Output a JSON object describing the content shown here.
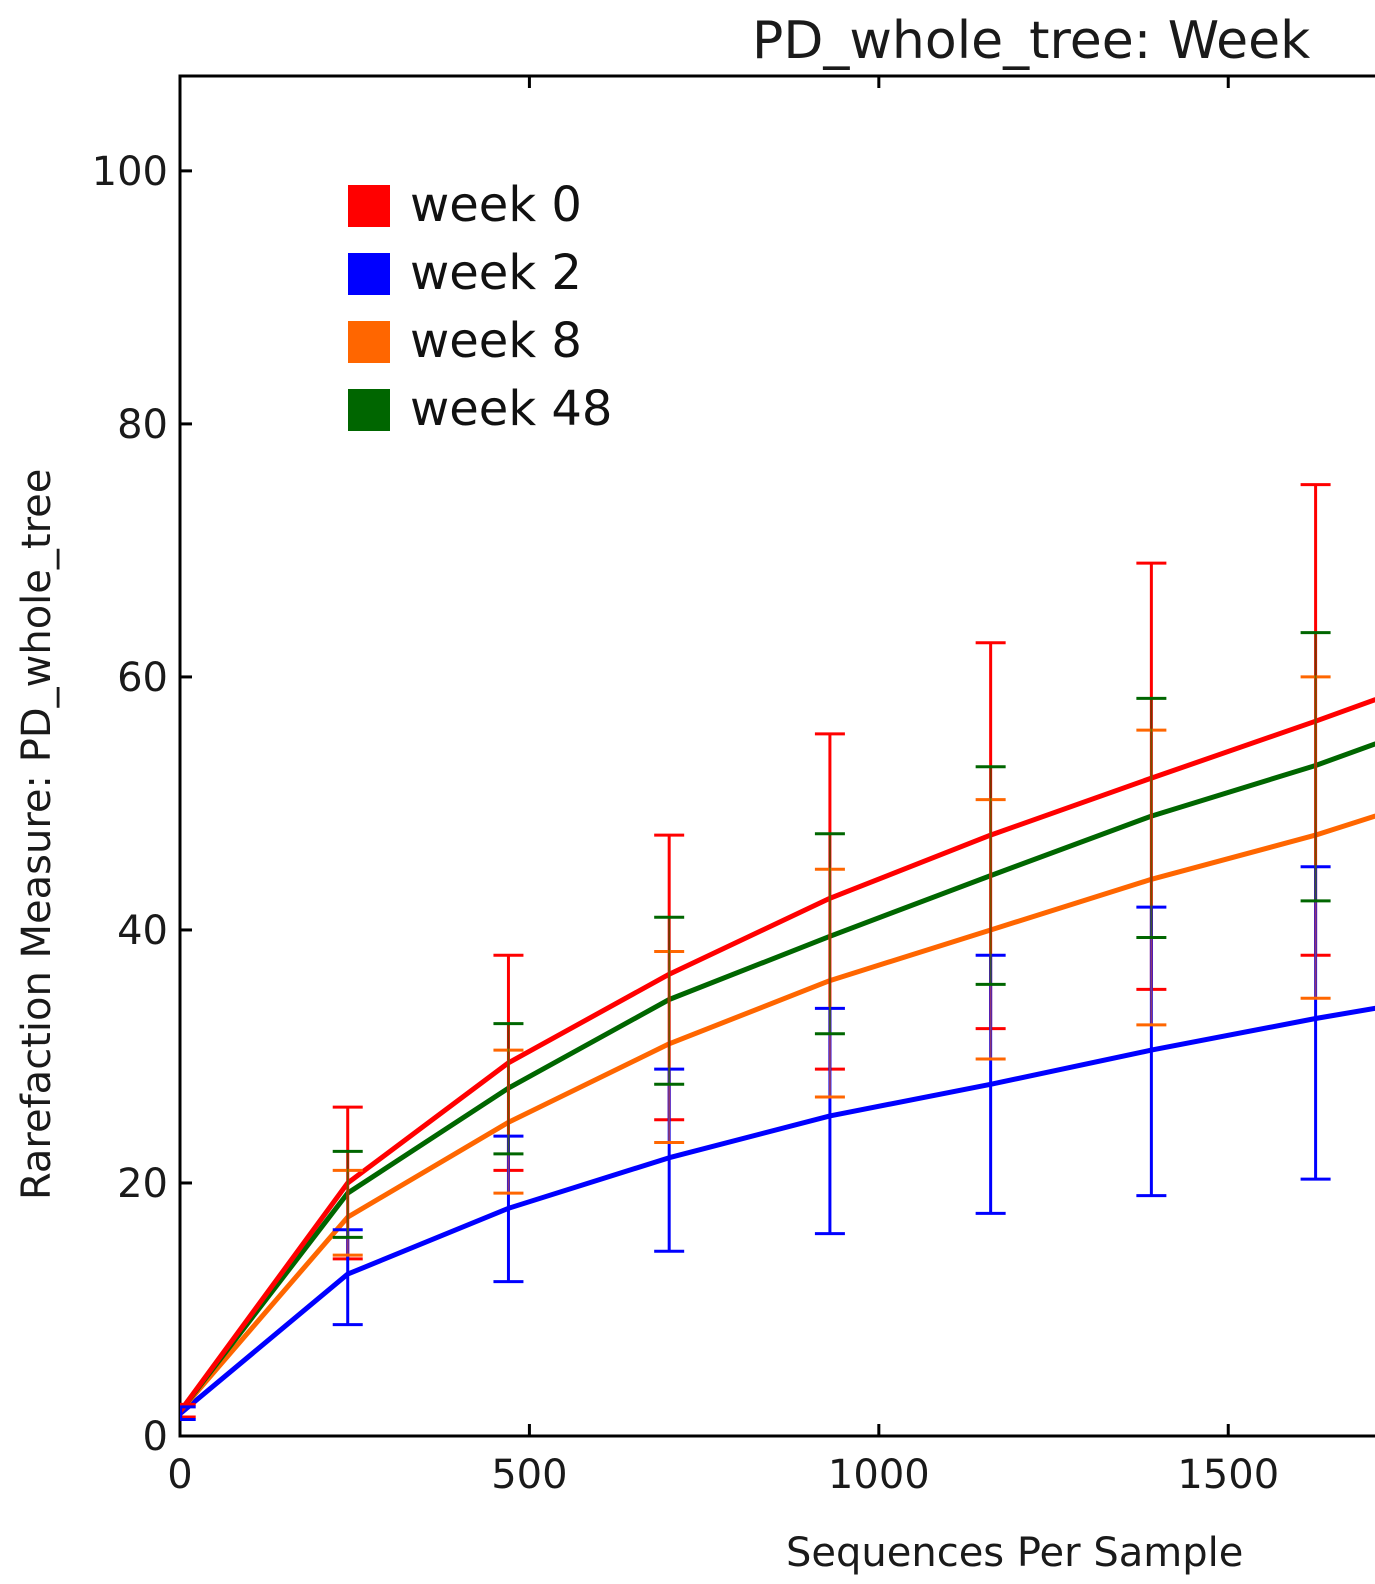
{
  "chart_data": {
    "type": "line",
    "title": "PD_whole_tree: Week",
    "xlabel": "Sequences Per Sample",
    "ylabel": "Rarefaction Measure: PD_whole_tree",
    "xlim": [
      0,
      1710
    ],
    "ylim": [
      0,
      107.5
    ],
    "x_ticks": [
      0,
      500,
      1000,
      1500
    ],
    "y_ticks": [
      0,
      20,
      40,
      60,
      80,
      100
    ],
    "grid": false,
    "legend_placement": "top-left",
    "x": [
      1,
      240,
      470,
      700,
      930,
      1160,
      1390,
      1625,
      1710
    ],
    "series": [
      {
        "name": "week 0",
        "color": "#ff0000",
        "values": [
          2,
          20,
          29.5,
          36.5,
          42.5,
          47.5,
          52,
          56.5,
          58.2
        ],
        "err_low": [
          1.5,
          14,
          21,
          25,
          29,
          32.2,
          35.3,
          38,
          null
        ],
        "err_high": [
          2.5,
          26,
          38,
          47.5,
          55.5,
          62.7,
          69,
          75.2,
          null
        ]
      },
      {
        "name": "week 2",
        "color": "#0000ff",
        "values": [
          1.8,
          12.8,
          18,
          22,
          25.3,
          27.8,
          30.5,
          33,
          33.8
        ],
        "err_low": [
          1.3,
          8.8,
          12.2,
          14.6,
          16,
          17.6,
          19,
          20.3,
          null
        ],
        "err_high": [
          2.3,
          16.3,
          23.7,
          29,
          33.8,
          38,
          41.8,
          45,
          null
        ]
      },
      {
        "name": "week 8",
        "color": "#ff6600",
        "values": [
          2,
          17.3,
          24.8,
          31,
          36,
          40,
          44,
          47.5,
          49
        ]
      },
      {
        "name": "week 48",
        "color": "#006600",
        "values": [
          2,
          19.2,
          27.5,
          34.5,
          39.5,
          44.3,
          49,
          53,
          54.7
        ]
      }
    ],
    "extra_error_caps": {
      "week 8": {
        "x": [
          240,
          470,
          700,
          930,
          1160,
          1390,
          1625
        ],
        "caps": [
          [
            14.3,
            21
          ],
          [
            19.2,
            30.5
          ],
          [
            23.2,
            38.3
          ],
          [
            26.8,
            44.8
          ],
          [
            29.8,
            50.3
          ],
          [
            32.5,
            55.8
          ],
          [
            34.6,
            60
          ]
        ]
      },
      "week 48": {
        "x": [
          240,
          470,
          700,
          930,
          1160,
          1390,
          1625
        ],
        "caps": [
          [
            15.7,
            22.5
          ],
          [
            22.3,
            32.6
          ],
          [
            27.8,
            41
          ],
          [
            31.8,
            47.6
          ],
          [
            35.7,
            52.9
          ],
          [
            39.4,
            58.3
          ],
          [
            42.3,
            63.5
          ]
        ]
      }
    }
  }
}
